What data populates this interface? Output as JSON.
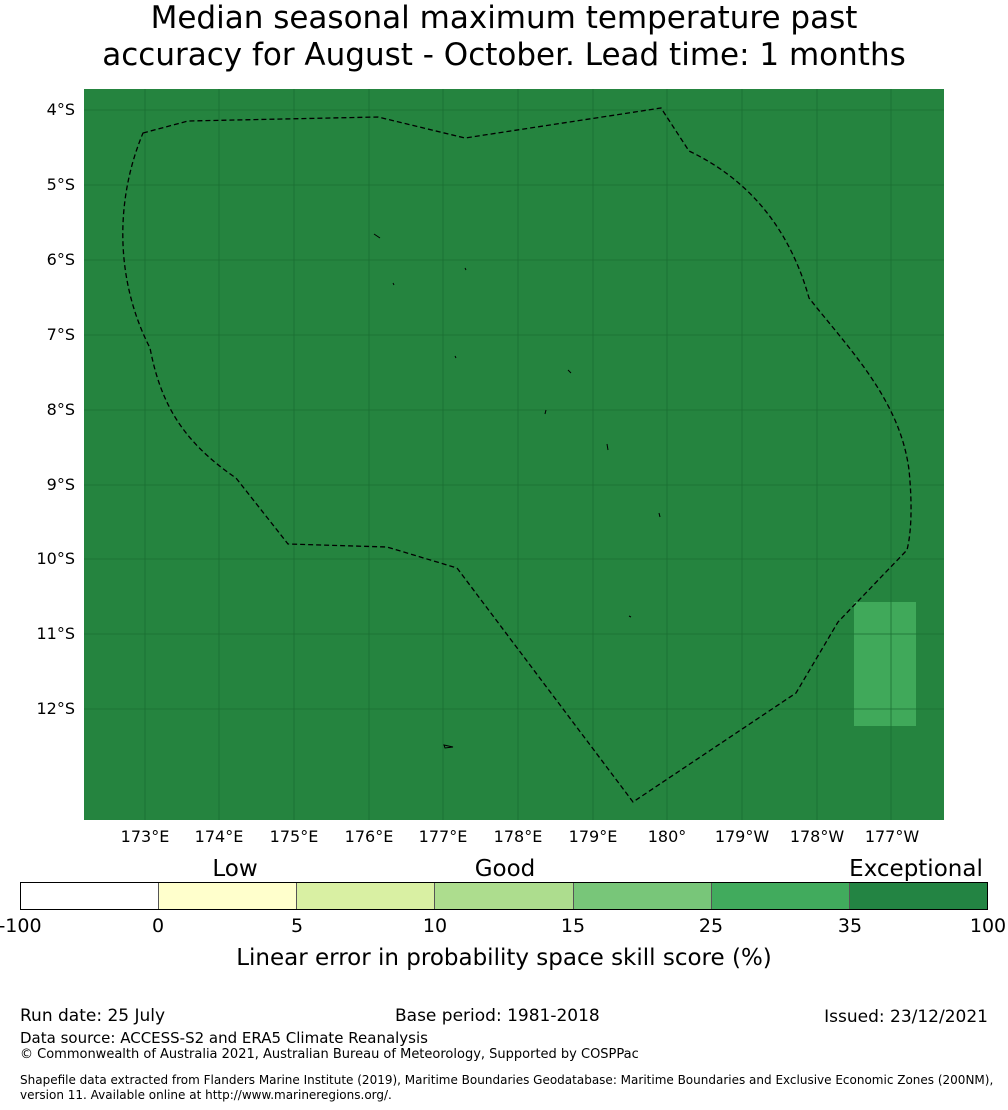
{
  "title": {
    "line1": "Median seasonal maximum temperature past",
    "line2": "accuracy for August - October. Lead time: 1 months"
  },
  "map": {
    "background_color": "#25843f",
    "highlight_color": "#40a95a",
    "lat_labels": [
      "4°S",
      "5°S",
      "6°S",
      "7°S",
      "8°S",
      "9°S",
      "10°S",
      "11°S",
      "12°S"
    ],
    "lon_labels": [
      "173°E",
      "174°E",
      "175°E",
      "176°E",
      "177°E",
      "178°E",
      "179°E",
      "180°",
      "179°W",
      "178°W",
      "177°W"
    ]
  },
  "legend": {
    "categories": [
      "Low",
      "Good",
      "Exceptional"
    ],
    "ticks": [
      "-100",
      "0",
      "5",
      "10",
      "15",
      "25",
      "35",
      "100"
    ],
    "colors": [
      "#ffffff",
      "#ffffcc",
      "#d9f0a3",
      "#addd8e",
      "#78c679",
      "#41ab5d",
      "#238443"
    ],
    "title": "Linear error in probability space skill score (%)"
  },
  "footer": {
    "run_date": "Run date: 25 July",
    "base_period": "Base period: 1981-2018",
    "issued": "Issued: 23/12/2021",
    "data_source": "Data source: ACCESS-S2 and ERA5 Climate Reanalysis",
    "copyright": "© Commonwealth of Australia 2021, Australian Bureau of Meteorology, Supported by COSPPac",
    "shapefile_line1": "Shapefile data extracted from Flanders Marine Institute (2019), Maritime Boundaries Geodatabase: Maritime Boundaries and Exclusive Economic Zones (200NM),",
    "shapefile_line2": "version 11. Available online at http://www.marineregions.org/."
  }
}
